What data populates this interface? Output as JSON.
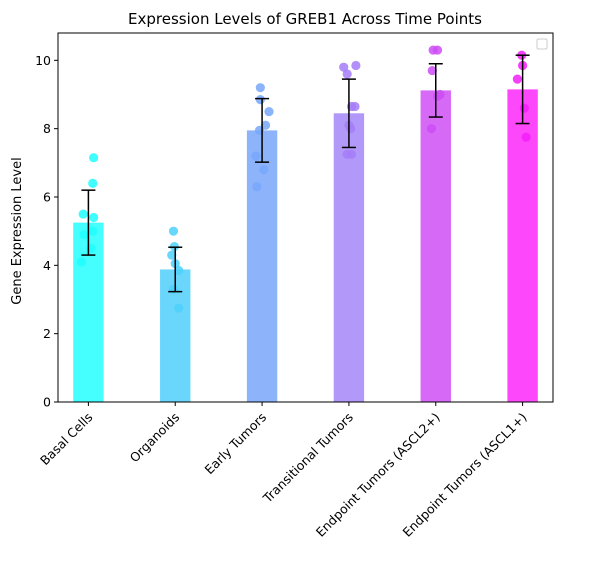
{
  "chart_data": {
    "type": "bar",
    "title": "Expression Levels of GREB1 Across Time Points",
    "xlabel": "",
    "ylabel": "Gene Expression Level",
    "ylim": [
      0,
      10.8
    ],
    "yticks": [
      0,
      2,
      4,
      6,
      8,
      10
    ],
    "categories": [
      "Basal Cells",
      "Organoids",
      "Early Tumors",
      "Transitional Tumors",
      "Endpoint Tumors (ASCL2+)",
      "Endpoint Tumors (ASCL1+)"
    ],
    "values": [
      5.25,
      3.88,
      7.95,
      8.45,
      9.12,
      9.15
    ],
    "error": [
      0.95,
      0.65,
      0.93,
      1.0,
      0.78,
      1.0
    ],
    "colors": [
      "#45fefe",
      "#6ad6fc",
      "#8db4fa",
      "#b298f8",
      "#d66af6",
      "#fd47fb"
    ],
    "point_colors": [
      "#1efefe",
      "#4cd0fc",
      "#78a7fa",
      "#a57cf8",
      "#cd4cf6",
      "#f31ff9"
    ],
    "points": [
      [
        [
          0.06,
          7.15
        ],
        [
          0.05,
          6.4
        ],
        [
          -0.06,
          5.5
        ],
        [
          0.06,
          5.4
        ],
        [
          0.05,
          5.0
        ],
        [
          -0.05,
          4.9
        ],
        [
          0.03,
          4.5
        ],
        [
          -0.08,
          4.1
        ]
      ],
      [
        [
          -0.02,
          5.0
        ],
        [
          -0.01,
          4.55
        ],
        [
          -0.04,
          4.3
        ],
        [
          0.0,
          4.05
        ],
        [
          0.04,
          3.85
        ],
        [
          -0.02,
          3.3
        ],
        [
          0.04,
          2.75
        ]
      ],
      [
        [
          -0.02,
          9.2
        ],
        [
          -0.02,
          8.85
        ],
        [
          0.08,
          8.5
        ],
        [
          0.04,
          8.1
        ],
        [
          -0.03,
          7.95
        ],
        [
          -0.07,
          7.2
        ],
        [
          0.02,
          6.8
        ],
        [
          -0.06,
          6.3
        ]
      ],
      [
        [
          -0.06,
          9.8
        ],
        [
          0.08,
          9.85
        ],
        [
          -0.02,
          9.6
        ],
        [
          0.03,
          8.65
        ],
        [
          0.07,
          8.65
        ],
        [
          0.0,
          8.1
        ],
        [
          0.02,
          8.0
        ],
        [
          -0.02,
          7.25
        ],
        [
          0.03,
          7.25
        ]
      ],
      [
        [
          -0.03,
          10.3
        ],
        [
          0.02,
          10.3
        ],
        [
          -0.04,
          9.7
        ],
        [
          0.05,
          9.0
        ],
        [
          0.02,
          8.95
        ],
        [
          -0.05,
          8.0
        ]
      ],
      [
        [
          -0.01,
          10.15
        ],
        [
          0.0,
          9.85
        ],
        [
          -0.06,
          9.45
        ],
        [
          0.02,
          8.6
        ],
        [
          0.04,
          7.75
        ]
      ]
    ],
    "legend": "top-right",
    "grid": false
  }
}
